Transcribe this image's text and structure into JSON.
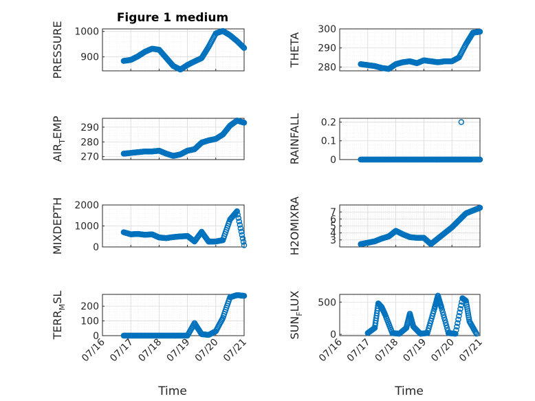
{
  "figure": {
    "title": "Figure 1 medium",
    "xlabel": "Time"
  },
  "colors": {
    "marker": "#0072BD",
    "axis": "#262626",
    "grid": "#d9d9d9"
  },
  "x_axis": {
    "type": "date",
    "range": [
      "2023-07-16",
      "2023-07-21"
    ],
    "ticks": [
      "07/16",
      "07/17",
      "07/18",
      "07/19",
      "07/20",
      "07/21"
    ],
    "tick_rotation_deg": 45
  },
  "chart_data": [
    {
      "type": "scatter",
      "ylabel": "PRESSURE",
      "ylim": [
        845,
        1010
      ],
      "yticks": [
        900,
        1000
      ],
      "grid": true,
      "x": [
        "07/16 18:00",
        "07/17 00:00",
        "07/17 06:00",
        "07/17 12:00",
        "07/17 18:00",
        "07/18 00:00",
        "07/18 06:00",
        "07/18 12:00",
        "07/18 18:00",
        "07/19 00:00",
        "07/19 06:00",
        "07/19 12:00",
        "07/19 18:00",
        "07/20 00:00",
        "07/20 06:00",
        "07/20 12:00",
        "07/20 18:00",
        "07/21 00:00"
      ],
      "y": [
        884,
        888,
        902,
        920,
        932,
        928,
        896,
        864,
        850,
        868,
        882,
        895,
        940,
        992,
        1002,
        985,
        962,
        935
      ]
    },
    {
      "type": "scatter",
      "ylabel": "THETA",
      "ylim": [
        278,
        300
      ],
      "yticks": [
        280,
        290,
        300
      ],
      "grid": true,
      "x": [
        "07/16 18:00",
        "07/17 00:00",
        "07/17 06:00",
        "07/17 12:00",
        "07/17 18:00",
        "07/18 00:00",
        "07/18 06:00",
        "07/18 12:00",
        "07/18 18:00",
        "07/19 00:00",
        "07/19 06:00",
        "07/19 12:00",
        "07/19 18:00",
        "07/20 00:00",
        "07/20 06:00",
        "07/20 12:00",
        "07/20 18:00",
        "07/21 00:00"
      ],
      "y": [
        281.5,
        281,
        280.5,
        279.5,
        279,
        281.5,
        282.5,
        283,
        282,
        283.5,
        283,
        282.5,
        283,
        283,
        285,
        292,
        298,
        298.5
      ]
    },
    {
      "type": "scatter",
      "ylabel": "AIR_TEMP",
      "ylim": [
        268,
        296
      ],
      "yticks": [
        270,
        280,
        290
      ],
      "grid": true,
      "x": [
        "07/16 18:00",
        "07/17 00:00",
        "07/17 06:00",
        "07/17 12:00",
        "07/17 18:00",
        "07/18 00:00",
        "07/18 06:00",
        "07/18 12:00",
        "07/18 18:00",
        "07/19 00:00",
        "07/19 06:00",
        "07/19 12:00",
        "07/19 18:00",
        "07/20 00:00",
        "07/20 06:00",
        "07/20 12:00",
        "07/20 18:00",
        "07/21 00:00"
      ],
      "y": [
        272,
        272.5,
        273,
        273.5,
        273.5,
        274,
        272,
        270.5,
        271.5,
        274,
        275,
        279.5,
        281,
        282,
        285,
        291,
        294.5,
        293
      ]
    },
    {
      "type": "scatter",
      "ylabel": "RAINFALL",
      "ylim": [
        0,
        0.22
      ],
      "yticks": [
        0,
        0.1,
        0.2
      ],
      "grid": true,
      "x": [
        "07/16 18:00",
        "07/17 00:00",
        "07/17 06:00",
        "07/17 12:00",
        "07/17 18:00",
        "07/18 00:00",
        "07/18 06:00",
        "07/18 12:00",
        "07/18 18:00",
        "07/19 00:00",
        "07/19 06:00",
        "07/19 12:00",
        "07/19 18:00",
        "07/20 00:00",
        "07/20 06:00",
        "07/20 12:00",
        "07/20 18:00",
        "07/21 00:00"
      ],
      "y": [
        0,
        0,
        0,
        0,
        0,
        0,
        0,
        0,
        0,
        0,
        0,
        0,
        0,
        0,
        0,
        0,
        0,
        0
      ],
      "outliers": {
        "x": [
          "07/20 08:00"
        ],
        "y": [
          0.2
        ]
      }
    },
    {
      "type": "scatter",
      "ylabel": "MIXDEPTH",
      "ylim": [
        0,
        2000
      ],
      "yticks": [
        0,
        1000,
        2000
      ],
      "grid": true,
      "x": [
        "07/16 18:00",
        "07/17 00:00",
        "07/17 06:00",
        "07/17 12:00",
        "07/17 18:00",
        "07/18 00:00",
        "07/18 06:00",
        "07/18 12:00",
        "07/18 18:00",
        "07/19 00:00",
        "07/19 06:00",
        "07/19 12:00",
        "07/19 18:00",
        "07/20 00:00",
        "07/20 06:00",
        "07/20 12:00",
        "07/20 18:00",
        "07/21 00:00"
      ],
      "y": [
        700,
        600,
        620,
        580,
        600,
        450,
        420,
        470,
        500,
        520,
        260,
        720,
        250,
        260,
        320,
        1300,
        1700,
        80
      ]
    },
    {
      "type": "scatter",
      "ylabel": "H2OMIXRA",
      "ylim": [
        2,
        8
      ],
      "yticks": [
        3,
        4,
        5,
        6,
        7
      ],
      "grid": true,
      "x": [
        "07/16 18:00",
        "07/17 00:00",
        "07/17 06:00",
        "07/17 12:00",
        "07/17 18:00",
        "07/18 00:00",
        "07/18 06:00",
        "07/18 12:00",
        "07/18 18:00",
        "07/19 00:00",
        "07/19 06:00",
        "07/19 12:00",
        "07/19 18:00",
        "07/20 00:00",
        "07/20 06:00",
        "07/20 12:00",
        "07/20 18:00",
        "07/21 00:00"
      ],
      "y": [
        2.4,
        2.6,
        2.8,
        3.2,
        3.5,
        4.3,
        3.8,
        3.4,
        3.3,
        3.3,
        2.4,
        3.2,
        4,
        4.8,
        5.8,
        6.8,
        7.2,
        7.6
      ]
    },
    {
      "type": "scatter",
      "ylabel": "TERR_MSL",
      "ylim": [
        0,
        280
      ],
      "yticks": [
        0,
        100,
        200
      ],
      "grid": true,
      "x": [
        "07/16 18:00",
        "07/17 00:00",
        "07/17 06:00",
        "07/17 12:00",
        "07/17 18:00",
        "07/18 00:00",
        "07/18 06:00",
        "07/18 12:00",
        "07/18 18:00",
        "07/19 00:00",
        "07/19 06:00",
        "07/19 12:00",
        "07/19 18:00",
        "07/20 00:00",
        "07/20 06:00",
        "07/20 12:00",
        "07/20 18:00",
        "07/21 00:00"
      ],
      "y": [
        0,
        0,
        0,
        0,
        0,
        0,
        0,
        0,
        0,
        0,
        85,
        10,
        5,
        30,
        120,
        260,
        275,
        270
      ]
    },
    {
      "type": "scatter",
      "ylabel": "SUN_FLUX",
      "ylim": [
        -20,
        620
      ],
      "yticks": [
        0,
        500
      ],
      "grid": true,
      "x": [
        "07/17 00:00",
        "07/17 06:00",
        "07/17 09:00",
        "07/17 12:00",
        "07/17 15:00",
        "07/17 21:00",
        "07/18 03:00",
        "07/18 09:00",
        "07/18 12:00",
        "07/18 15:00",
        "07/18 21:00",
        "07/19 03:00",
        "07/19 09:00",
        "07/19 12:00",
        "07/19 15:00",
        "07/19 21:00",
        "07/20 03:00",
        "07/20 09:00",
        "07/20 12:00",
        "07/20 15:00",
        "07/20 21:00"
      ],
      "y": [
        20,
        100,
        480,
        420,
        300,
        20,
        10,
        100,
        320,
        120,
        10,
        20,
        400,
        600,
        420,
        20,
        10,
        560,
        520,
        200,
        10
      ]
    }
  ]
}
